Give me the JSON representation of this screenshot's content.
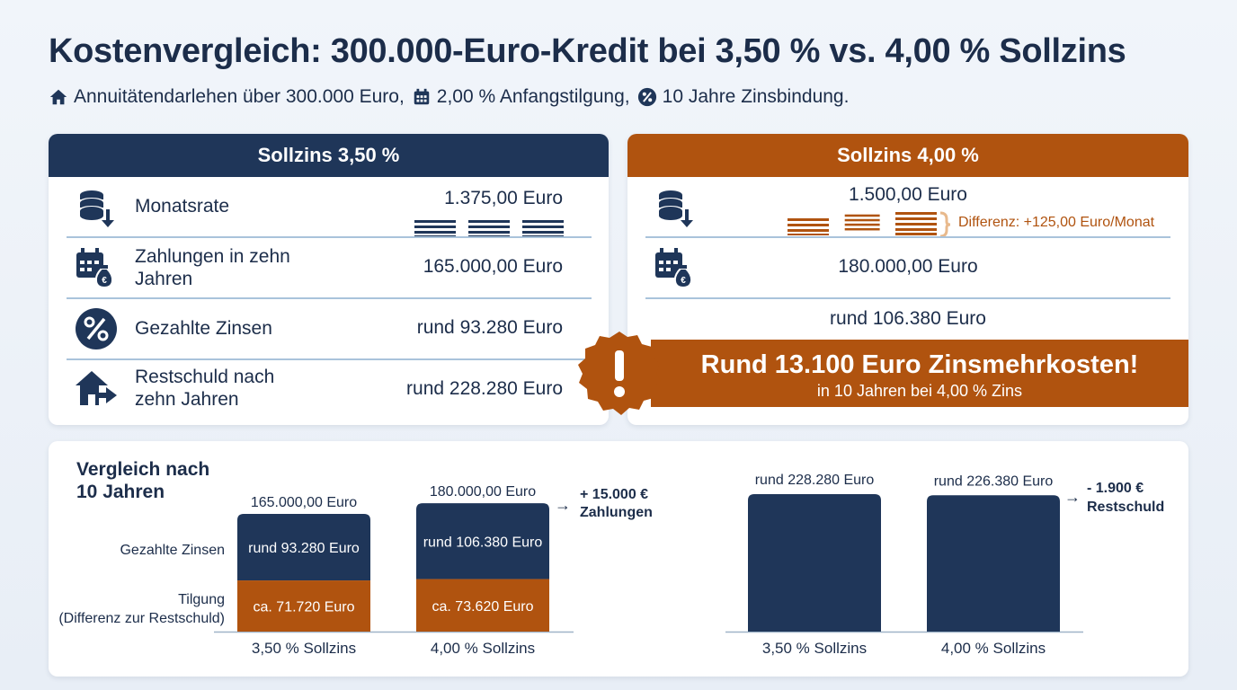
{
  "header": {
    "title": "Kostenvergleich: 300.000-Euro-Kredit bei 3,50 % vs. 4,00 % Sollzins",
    "sub_1": "Annuitätendarlehen über 300.000 Euro,",
    "sub_2": "2,00 % Anfangstilgung,",
    "sub_3": "10 Jahre Zinsbindung.",
    "icons": [
      "house-icon",
      "calendar-icon",
      "percent-icon"
    ]
  },
  "colors": {
    "navy": "#1f3659",
    "orange": "#b0530f",
    "light_blue": "#a9c3db"
  },
  "left_card": {
    "title": "Sollzins 3,50 %",
    "rows": [
      {
        "icon": "coins-down-icon",
        "label": "Monatsrate",
        "value": "1.375,00 Euro"
      },
      {
        "icon": "calendar-money-icon",
        "label": "Zahlungen in zehn Jahren",
        "value": "165.000,00 Euro"
      },
      {
        "icon": "percent-icon",
        "label": "Gezahlte Zinsen",
        "value": "rund 93.280 Euro"
      },
      {
        "icon": "house-arrow-icon",
        "label": "Restschuld nach zehn Jahren",
        "value": "rund 228.280 Euro"
      }
    ]
  },
  "right_card": {
    "title": "Sollzins 4,00 %",
    "rows": [
      {
        "icon": "coins-down-icon",
        "value": "1.500,00 Euro"
      },
      {
        "icon": "calendar-money-icon",
        "value": "180.000,00 Euro"
      },
      {
        "value": "rund 106.380 Euro"
      }
    ],
    "diff_note": "Differenz: +125,00 Euro/Monat"
  },
  "banner": {
    "icon": "exclamation-icon",
    "main": "Rund 13.100 Euro Zinsmehrkosten!",
    "sub": "in 10 Jahren bei 4,00 % Zins"
  },
  "chart_data": [
    {
      "type": "bar",
      "title": "Vergleich nach 10 Jahren",
      "stacked": true,
      "categories": [
        "3,50 % Sollzins",
        "4,00 % Sollzins"
      ],
      "totals": [
        165000,
        180000
      ],
      "total_labels": [
        "165.000,00 Euro",
        "180.000,00 Euro"
      ],
      "series": [
        {
          "name": "Gezahlte Zinsen",
          "values": [
            93280,
            106380
          ],
          "labels": [
            "rund 93.280 Euro",
            "rund 106.380 Euro"
          ],
          "color": "#1f3659"
        },
        {
          "name": "Tilgung (Differenz zur Restschuld)",
          "values": [
            71720,
            73620
          ],
          "labels": [
            "ca. 71.720 Euro",
            "ca. 73.620 Euro"
          ],
          "color": "#b0530f"
        }
      ],
      "series_label_lines": [
        [
          "Gezahlte Zinsen"
        ],
        [
          "Tilgung",
          "(Differenz zur Restschuld)"
        ]
      ],
      "annotation": {
        "arrow": "→",
        "lines": [
          "+ 15.000 €",
          "Zahlungen"
        ]
      }
    },
    {
      "type": "bar",
      "categories": [
        "3,50 % Sollzins",
        "4,00 % Sollzins"
      ],
      "values": [
        228280,
        226380
      ],
      "value_labels": [
        "rund 228.280 Euro",
        "rund 226.380 Euro"
      ],
      "color": "#1f3659",
      "annotation": {
        "arrow": "→",
        "lines": [
          "- 1.900 €",
          "Restschuld"
        ]
      }
    }
  ]
}
